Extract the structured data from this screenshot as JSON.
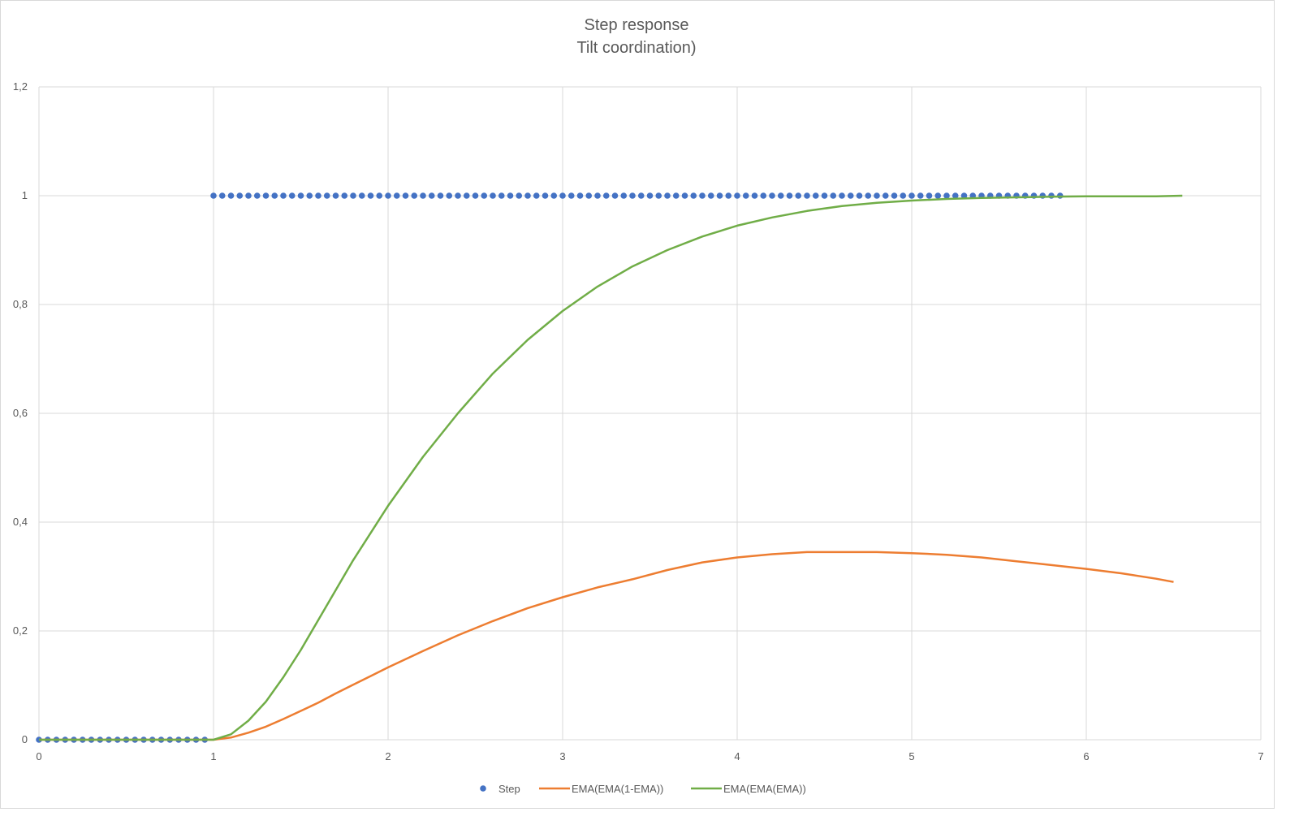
{
  "chart_data": {
    "type": "scatter",
    "title": "Step response",
    "subtitle": "Tilt coordination)",
    "xlim": [
      0,
      7
    ],
    "ylim": [
      0,
      1.2
    ],
    "x_ticks": [
      "0",
      "1",
      "2",
      "3",
      "4",
      "5",
      "6",
      "7"
    ],
    "y_ticks": [
      "0",
      "0,2",
      "0,4",
      "0,6",
      "0,8",
      "1",
      "1,2"
    ],
    "grid": true,
    "legend_position": "bottom",
    "series": [
      {
        "name": "Step",
        "style": "markers",
        "color": "#4472c4",
        "points": [
          [
            0,
            0
          ],
          [
            0.05,
            0
          ],
          [
            0.1,
            0
          ],
          [
            0.15,
            0
          ],
          [
            0.2,
            0
          ],
          [
            0.25,
            0
          ],
          [
            0.3,
            0
          ],
          [
            0.35,
            0
          ],
          [
            0.4,
            0
          ],
          [
            0.45,
            0
          ],
          [
            0.5,
            0
          ],
          [
            0.55,
            0
          ],
          [
            0.6,
            0
          ],
          [
            0.65,
            0
          ],
          [
            0.7,
            0
          ],
          [
            0.75,
            0
          ],
          [
            0.8,
            0
          ],
          [
            0.85,
            0
          ],
          [
            0.9,
            0
          ],
          [
            0.95,
            0
          ],
          [
            1,
            1
          ],
          [
            1.05,
            1
          ],
          [
            1.1,
            1
          ],
          [
            1.15,
            1
          ],
          [
            1.2,
            1
          ],
          [
            1.25,
            1
          ],
          [
            1.3,
            1
          ],
          [
            1.35,
            1
          ],
          [
            1.4,
            1
          ],
          [
            1.45,
            1
          ],
          [
            1.5,
            1
          ],
          [
            1.55,
            1
          ],
          [
            1.6,
            1
          ],
          [
            1.65,
            1
          ],
          [
            1.7,
            1
          ],
          [
            1.75,
            1
          ],
          [
            1.8,
            1
          ],
          [
            1.85,
            1
          ],
          [
            1.9,
            1
          ],
          [
            1.95,
            1
          ],
          [
            2,
            1
          ],
          [
            2.05,
            1
          ],
          [
            2.1,
            1
          ],
          [
            2.15,
            1
          ],
          [
            2.2,
            1
          ],
          [
            2.25,
            1
          ],
          [
            2.3,
            1
          ],
          [
            2.35,
            1
          ],
          [
            2.4,
            1
          ],
          [
            2.45,
            1
          ],
          [
            2.5,
            1
          ],
          [
            2.55,
            1
          ],
          [
            2.6,
            1
          ],
          [
            2.65,
            1
          ],
          [
            2.7,
            1
          ],
          [
            2.75,
            1
          ],
          [
            2.8,
            1
          ],
          [
            2.85,
            1
          ],
          [
            2.9,
            1
          ],
          [
            2.95,
            1
          ],
          [
            3,
            1
          ],
          [
            3.05,
            1
          ],
          [
            3.1,
            1
          ],
          [
            3.15,
            1
          ],
          [
            3.2,
            1
          ],
          [
            3.25,
            1
          ],
          [
            3.3,
            1
          ],
          [
            3.35,
            1
          ],
          [
            3.4,
            1
          ],
          [
            3.45,
            1
          ],
          [
            3.5,
            1
          ],
          [
            3.55,
            1
          ],
          [
            3.6,
            1
          ],
          [
            3.65,
            1
          ],
          [
            3.7,
            1
          ],
          [
            3.75,
            1
          ],
          [
            3.8,
            1
          ],
          [
            3.85,
            1
          ],
          [
            3.9,
            1
          ],
          [
            3.95,
            1
          ],
          [
            4,
            1
          ],
          [
            4.05,
            1
          ],
          [
            4.1,
            1
          ],
          [
            4.15,
            1
          ],
          [
            4.2,
            1
          ],
          [
            4.25,
            1
          ],
          [
            4.3,
            1
          ],
          [
            4.35,
            1
          ],
          [
            4.4,
            1
          ],
          [
            4.45,
            1
          ],
          [
            4.5,
            1
          ],
          [
            4.55,
            1
          ],
          [
            4.6,
            1
          ],
          [
            4.65,
            1
          ],
          [
            4.7,
            1
          ],
          [
            4.75,
            1
          ],
          [
            4.8,
            1
          ],
          [
            4.85,
            1
          ],
          [
            4.9,
            1
          ],
          [
            4.95,
            1
          ],
          [
            5,
            1
          ],
          [
            5.05,
            1
          ],
          [
            5.1,
            1
          ],
          [
            5.15,
            1
          ],
          [
            5.2,
            1
          ],
          [
            5.25,
            1
          ],
          [
            5.3,
            1
          ],
          [
            5.35,
            1
          ],
          [
            5.4,
            1
          ],
          [
            5.45,
            1
          ],
          [
            5.5,
            1
          ],
          [
            5.55,
            1
          ],
          [
            5.6,
            1
          ],
          [
            5.65,
            1
          ],
          [
            5.7,
            1
          ],
          [
            5.75,
            1
          ],
          [
            5.8,
            1
          ],
          [
            5.85,
            1
          ]
        ]
      },
      {
        "name": "EMA(EMA(1-EMA))",
        "style": "line",
        "color": "#ed7d31",
        "points": [
          [
            0,
            0
          ],
          [
            1,
            0
          ],
          [
            1.1,
            0.004
          ],
          [
            1.2,
            0.013
          ],
          [
            1.3,
            0.024
          ],
          [
            1.4,
            0.038
          ],
          [
            1.5,
            0.053
          ],
          [
            1.6,
            0.068
          ],
          [
            1.7,
            0.085
          ],
          [
            1.8,
            0.101
          ],
          [
            1.9,
            0.117
          ],
          [
            2,
            0.133
          ],
          [
            2.2,
            0.163
          ],
          [
            2.4,
            0.192
          ],
          [
            2.6,
            0.218
          ],
          [
            2.8,
            0.242
          ],
          [
            3,
            0.262
          ],
          [
            3.2,
            0.28
          ],
          [
            3.4,
            0.295
          ],
          [
            3.6,
            0.312
          ],
          [
            3.8,
            0.326
          ],
          [
            4,
            0.335
          ],
          [
            4.2,
            0.341
          ],
          [
            4.4,
            0.345
          ],
          [
            4.6,
            0.345
          ],
          [
            4.8,
            0.345
          ],
          [
            5,
            0.343
          ],
          [
            5.2,
            0.34
          ],
          [
            5.4,
            0.335
          ],
          [
            5.6,
            0.328
          ],
          [
            5.8,
            0.321
          ],
          [
            6,
            0.314
          ],
          [
            6.2,
            0.306
          ],
          [
            6.4,
            0.296
          ],
          [
            6.5,
            0.29
          ]
        ]
      },
      {
        "name": "EMA(EMA(EMA))",
        "style": "line",
        "color": "#70ad47",
        "points": [
          [
            0,
            0
          ],
          [
            1,
            0
          ],
          [
            1.1,
            0.01
          ],
          [
            1.2,
            0.035
          ],
          [
            1.3,
            0.07
          ],
          [
            1.4,
            0.115
          ],
          [
            1.5,
            0.165
          ],
          [
            1.6,
            0.22
          ],
          [
            1.7,
            0.275
          ],
          [
            1.8,
            0.33
          ],
          [
            1.9,
            0.38
          ],
          [
            2,
            0.43
          ],
          [
            2.2,
            0.52
          ],
          [
            2.4,
            0.6
          ],
          [
            2.6,
            0.673
          ],
          [
            2.8,
            0.735
          ],
          [
            3,
            0.788
          ],
          [
            3.2,
            0.833
          ],
          [
            3.4,
            0.87
          ],
          [
            3.6,
            0.9
          ],
          [
            3.8,
            0.925
          ],
          [
            4,
            0.945
          ],
          [
            4.2,
            0.96
          ],
          [
            4.4,
            0.972
          ],
          [
            4.6,
            0.981
          ],
          [
            4.8,
            0.987
          ],
          [
            5,
            0.991
          ],
          [
            5.2,
            0.994
          ],
          [
            5.4,
            0.996
          ],
          [
            5.6,
            0.997
          ],
          [
            5.8,
            0.998
          ],
          [
            6,
            0.999
          ],
          [
            6.2,
            0.999
          ],
          [
            6.4,
            0.999
          ],
          [
            6.55,
            1
          ]
        ]
      }
    ]
  }
}
